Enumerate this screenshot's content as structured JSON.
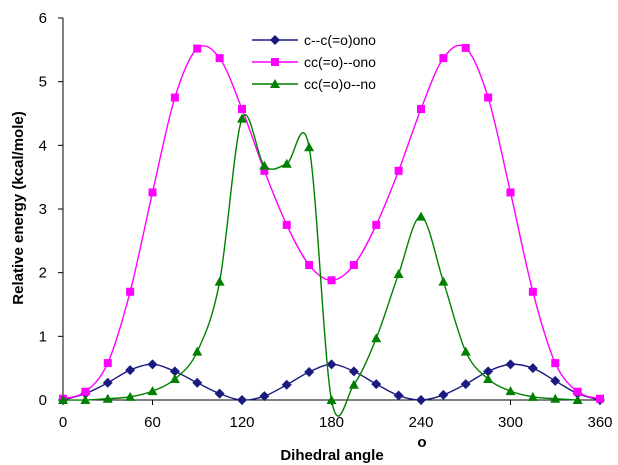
{
  "chart_data": {
    "type": "line",
    "title": "",
    "xlabel": "Dihedral angle",
    "xlabel_superscript": "o",
    "ylabel": "Relative energy (kcal/mole)",
    "xlim": [
      0,
      360
    ],
    "ylim": [
      0,
      6
    ],
    "xticks": [
      0,
      60,
      120,
      180,
      240,
      300,
      360
    ],
    "yticks": [
      0,
      1,
      2,
      3,
      4,
      5,
      6
    ],
    "grid": false,
    "legend_position": "top-center",
    "series": [
      {
        "name": "c--c(=o)ono",
        "color": "#1a1a80",
        "marker": "diamond",
        "x": [
          0,
          15,
          30,
          45,
          60,
          75,
          90,
          105,
          120,
          135,
          150,
          165,
          180,
          195,
          210,
          225,
          240,
          255,
          270,
          285,
          300,
          315,
          330,
          345,
          360
        ],
        "y": [
          0.0,
          0.1,
          0.27,
          0.47,
          0.56,
          0.45,
          0.27,
          0.1,
          0.0,
          0.06,
          0.24,
          0.44,
          0.56,
          0.45,
          0.25,
          0.07,
          0.0,
          0.08,
          0.25,
          0.45,
          0.56,
          0.5,
          0.3,
          0.1,
          0.0
        ]
      },
      {
        "name": "cc(=o)--ono",
        "color": "#ff00ff",
        "marker": "square",
        "x": [
          0,
          15,
          30,
          45,
          60,
          75,
          90,
          105,
          120,
          135,
          150,
          165,
          180,
          195,
          210,
          225,
          240,
          255,
          270,
          285,
          300,
          315,
          330,
          345,
          360
        ],
        "y": [
          0.02,
          0.13,
          0.58,
          1.7,
          3.26,
          4.75,
          5.52,
          5.37,
          4.57,
          3.6,
          2.75,
          2.12,
          1.88,
          2.12,
          2.75,
          3.6,
          4.57,
          5.37,
          5.53,
          4.75,
          3.26,
          1.7,
          0.58,
          0.13,
          0.02
        ]
      },
      {
        "name": "cc(=o)o--no",
        "color": "#008000",
        "marker": "triangle",
        "x": [
          0,
          15,
          30,
          45,
          60,
          75,
          90,
          105,
          120,
          135,
          150,
          165,
          180,
          195,
          210,
          225,
          240,
          255,
          270,
          285,
          300,
          315,
          330,
          345
        ],
        "y": [
          0.0,
          0.0,
          0.02,
          0.05,
          0.14,
          0.33,
          0.76,
          1.86,
          4.42,
          3.68,
          3.71,
          3.97,
          0.0,
          0.24,
          0.97,
          1.98,
          2.88,
          1.86,
          0.76,
          0.33,
          0.14,
          0.05,
          0.02,
          0.0
        ]
      }
    ]
  }
}
